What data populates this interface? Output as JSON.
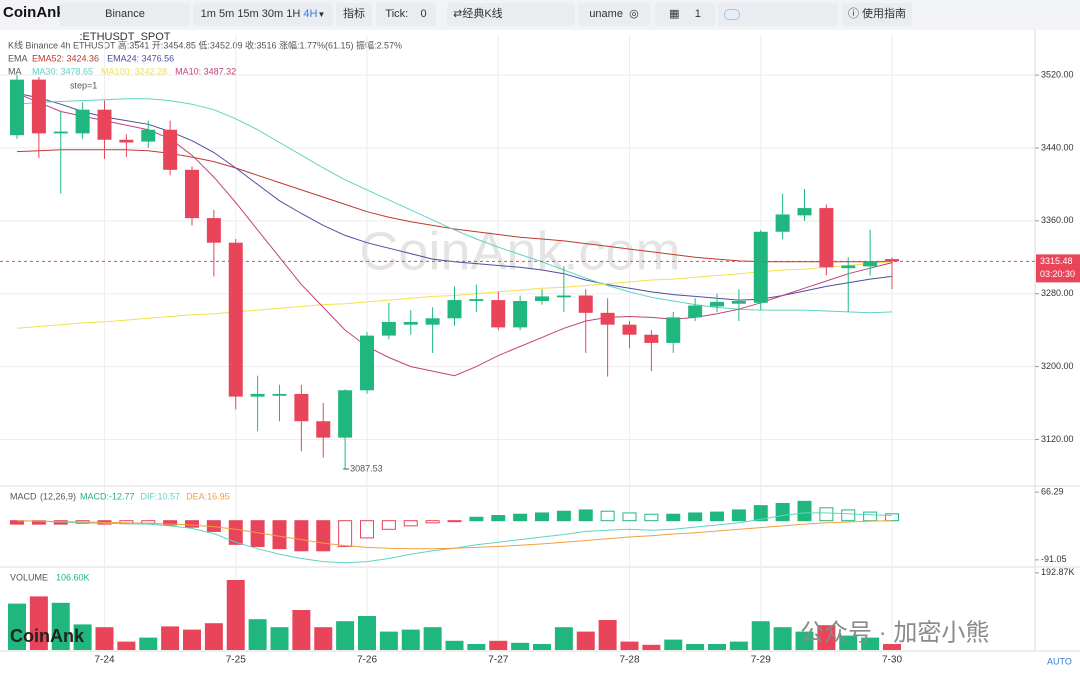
{
  "toolbar": {
    "logo": "CoinAnk",
    "symbol": "Binance :ETHUSDT_SPOT",
    "intervals": [
      "1m",
      "5m",
      "15m",
      "30m",
      "1H",
      "4H"
    ],
    "indicator": "指标",
    "tick_label": "Tick:",
    "tick_value": "0",
    "chart_style": "经典K线",
    "user": "uname",
    "count": "1",
    "guide": "使用指南"
  },
  "legend": {
    "kline": "K线  Binance 4h ETHUSDT 高:3541 开:3454.85 低:3452.09 收:3516 涨幅:1.77%(61.15) 振幅:2.57%",
    "ema": "EMA",
    "ma": "MA",
    "step": "step=1"
  },
  "watermark": "CoinAnk.com",
  "brand": "CoinAnk",
  "wechat": "公众号 · 加密小熊",
  "auto": "AUTO",
  "chart_data": [
    {
      "type": "candlestick",
      "categories": [
        null,
        null,
        null,
        null,
        "7-24",
        null,
        null,
        null,
        null,
        null,
        "7-25",
        null,
        null,
        null,
        null,
        null,
        "7-26",
        null,
        null,
        null,
        null,
        null,
        "7-27",
        null,
        null,
        null,
        null,
        null,
        "7-28",
        null,
        null,
        null,
        null,
        null,
        "7-29",
        null,
        null,
        null,
        null,
        null,
        "7-30"
      ],
      "open": [
        3454,
        3515,
        3456,
        3456,
        3482,
        3449,
        3447,
        3460,
        3416,
        3363,
        3336,
        3167,
        3168,
        3170,
        3140,
        3122,
        3174,
        3234,
        3246,
        3246,
        3253,
        3272,
        3273,
        3243,
        3272,
        3276,
        3278,
        3259,
        3246,
        3235,
        3226,
        3254,
        3266,
        3269,
        3270,
        3348,
        3366,
        3374,
        3308,
        3310,
        3318
      ],
      "high": [
        3520,
        3518,
        3480,
        3490,
        3492,
        3455,
        3470,
        3470,
        3420,
        3372,
        3340,
        3190,
        3180,
        3180,
        3160,
        3175,
        3238,
        3270,
        3262,
        3265,
        3288,
        3290,
        3282,
        3278,
        3285,
        3310,
        3285,
        3275,
        3250,
        3240,
        3260,
        3275,
        3280,
        3285,
        3350,
        3390,
        3395,
        3378,
        3320,
        3350,
        3320
      ],
      "low": [
        3450,
        3429,
        3390,
        3450,
        3428,
        3430,
        3440,
        3410,
        3355,
        3299,
        3153,
        3129,
        3140,
        3107,
        3100,
        3087.53,
        3170,
        3230,
        3235,
        3215,
        3245,
        3260,
        3240,
        3240,
        3268,
        3260,
        3215,
        3189,
        3220,
        3195,
        3215,
        3250,
        3260,
        3250,
        3262,
        3340,
        3360,
        3300,
        3260,
        3300,
        3285
      ],
      "close": [
        3515,
        3456,
        3458,
        3482,
        3449,
        3446,
        3460,
        3416,
        3363,
        3336,
        3167,
        3170,
        3170,
        3140,
        3122,
        3174,
        3234,
        3249,
        3249,
        3253,
        3273,
        3274,
        3243,
        3272,
        3277,
        3278,
        3259,
        3246,
        3235,
        3226,
        3254,
        3267,
        3271,
        3272,
        3348,
        3367,
        3374,
        3309,
        3311,
        3315,
        3315.48
      ],
      "up_color": "#20b77f",
      "down_color": "#e8445a",
      "series": [
        {
          "name": "EMA52: 3424.36",
          "group": "ema",
          "color": "#c0392b",
          "values": [
            3436,
            3437,
            3438,
            3438,
            3438,
            3438,
            3437,
            3434,
            3430,
            3425,
            3418,
            3410,
            3402,
            3394,
            3386,
            3378,
            3370,
            3364,
            3359,
            3355,
            3351,
            3348,
            3345,
            3342,
            3340,
            3338,
            3335,
            3332,
            3329,
            3326,
            3323,
            3320,
            3318,
            3316,
            3315,
            3315,
            3315,
            3315,
            3315,
            3315,
            3315
          ]
        },
        {
          "name": "EMA24: 3476.56",
          "group": "ema",
          "color": "#4b4f9c",
          "values": [
            3500,
            3495,
            3488,
            3480,
            3474,
            3470,
            3466,
            3458,
            3448,
            3435,
            3418,
            3400,
            3382,
            3368,
            3355,
            3344,
            3336,
            3330,
            3324,
            3318,
            3315,
            3313,
            3311,
            3309,
            3306,
            3302,
            3295,
            3290,
            3286,
            3282,
            3279,
            3277,
            3275,
            3273,
            3274,
            3278,
            3283,
            3288,
            3292,
            3296,
            3299
          ]
        },
        {
          "name": "MA30: 3478.65",
          "group": "ma",
          "color": "#5fd3c4",
          "values": [
            3488,
            3490,
            3491,
            3492,
            3493,
            3494,
            3494,
            3492,
            3488,
            3482,
            3472,
            3460,
            3446,
            3432,
            3418,
            3405,
            3394,
            3383,
            3372,
            3361,
            3350,
            3340,
            3331,
            3323,
            3315,
            3306,
            3297,
            3289,
            3282,
            3276,
            3272,
            3268,
            3265,
            3263,
            3262,
            3262,
            3262,
            3261,
            3260,
            3259,
            3260
          ]
        },
        {
          "name": "MA100: 3242.28",
          "group": "ma",
          "color": "#f2e14c",
          "values": [
            3242,
            3244,
            3246,
            3248,
            3249,
            3251,
            3253,
            3255,
            3257,
            3258,
            3260,
            3262,
            3264,
            3266,
            3268,
            3269,
            3271,
            3273,
            3275,
            3277,
            3278,
            3280,
            3282,
            3284,
            3286,
            3287,
            3289,
            3291,
            3293,
            3295,
            3296,
            3298,
            3300,
            3302,
            3304,
            3306,
            3307,
            3309,
            3311,
            3313,
            3315
          ]
        },
        {
          "name": "MA10: 3487.32",
          "group": "ma",
          "color": "#c2407a",
          "values": [
            3500,
            3490,
            3480,
            3475,
            3470,
            3465,
            3460,
            3450,
            3432,
            3408,
            3380,
            3350,
            3320,
            3290,
            3265,
            3240,
            3222,
            3210,
            3200,
            3195,
            3190,
            3200,
            3212,
            3222,
            3232,
            3242,
            3250,
            3254,
            3255,
            3254,
            3252,
            3254,
            3258,
            3263,
            3270,
            3278,
            3286,
            3294,
            3302,
            3308,
            3314
          ]
        }
      ],
      "countdown": "03:20:30",
      "ylim": [
        3070,
        3564
      ],
      "yticks": [
        {
          "value": 3520,
          "label": "3520.00"
        },
        {
          "value": 3440,
          "label": "3440.00"
        },
        {
          "value": 3360,
          "label": "3360.00"
        },
        {
          "value": 3280,
          "label": "3280.00"
        },
        {
          "value": 3200,
          "label": "3200.00"
        },
        {
          "value": 3120,
          "label": "3120.00"
        }
      ],
      "grid": true
    },
    {
      "type": "macd",
      "title": "MACD",
      "subtitle": "(12,26,9)",
      "series": [
        {
          "name": "MACD:-12.77",
          "kind": "bar",
          "color": "#20b77f",
          "values": [
            -8,
            -8,
            -8,
            -6,
            -8,
            -7,
            -6,
            -10,
            -15,
            -25,
            -55,
            -60,
            -65,
            -70,
            -70,
            -60,
            -40,
            -20,
            -12,
            -5,
            -2,
            8,
            12,
            15,
            18,
            22,
            25,
            22,
            18,
            15,
            15,
            18,
            20,
            25,
            35,
            40,
            45,
            30,
            25,
            20,
            16
          ]
        },
        {
          "name": "DIF:10.57",
          "kind": "line",
          "color": "#5fd3c4",
          "values": [
            0,
            -1,
            -3,
            -5,
            -6,
            -7,
            -8,
            -12,
            -18,
            -30,
            -50,
            -65,
            -78,
            -88,
            -95,
            -98,
            -95,
            -88,
            -78,
            -70,
            -64,
            -56,
            -50,
            -44,
            -38,
            -32,
            -25,
            -22,
            -20,
            -22,
            -20,
            -15,
            -10,
            -5,
            3,
            12,
            18,
            18,
            16,
            14,
            12
          ]
        },
        {
          "name": "DEA:16.95",
          "kind": "line",
          "color": "#f0a040",
          "values": [
            0,
            -1,
            -2,
            -3,
            -4,
            -5,
            -6,
            -8,
            -10,
            -14,
            -20,
            -28,
            -36,
            -44,
            -52,
            -58,
            -62,
            -64,
            -65,
            -65,
            -64,
            -62,
            -60,
            -57,
            -54,
            -50,
            -46,
            -42,
            -38,
            -35,
            -31,
            -28,
            -24,
            -20,
            -16,
            -12,
            -8,
            -5,
            -3,
            -1,
            0
          ]
        }
      ],
      "ylim": [
        -103,
        76
      ],
      "yticks": [
        66.29,
        -91.05
      ]
    },
    {
      "type": "volume",
      "title": "VOLUME",
      "subtitle": "106.60K",
      "values": [
        116,
        134,
        118,
        64,
        57,
        21,
        31,
        59,
        51,
        67,
        175,
        77,
        57,
        100,
        57,
        72,
        85,
        46,
        51,
        57,
        23,
        15,
        23,
        18,
        15,
        57,
        46,
        75,
        21,
        13,
        26,
        15,
        15,
        21,
        72,
        57,
        46,
        62,
        36,
        31,
        15
      ],
      "ylim": [
        0,
        200
      ],
      "yticks": [
        {
          "value": 192.87,
          "label": "192.87K"
        }
      ]
    }
  ]
}
